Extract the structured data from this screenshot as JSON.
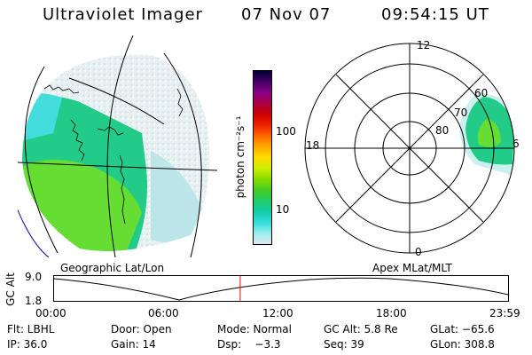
{
  "header": {
    "instrument": "Ultraviolet Imager",
    "date": "07 Nov 07",
    "time": "09:54:15 UT"
  },
  "colorbar": {
    "label": "photon cm⁻²s⁻¹",
    "ticks": [
      "100",
      "10"
    ],
    "colors": [
      "#000033",
      "#440066",
      "#880088",
      "#aa0044",
      "#cc0000",
      "#ee2200",
      "#ff6600",
      "#ffaa00",
      "#ffdd00",
      "#ccee00",
      "#88dd00",
      "#44cc22",
      "#22cc66",
      "#11ccaa",
      "#33dddd",
      "#99eeee",
      "#dde8ee"
    ]
  },
  "left_panel": {
    "caption": "Geographic Lat/Lon"
  },
  "right_panel": {
    "caption": "Apex MLat/MLT",
    "mlt_labels": {
      "top": "12",
      "left": "18",
      "right": "6",
      "bottom": "0"
    },
    "lat_labels": [
      "80",
      "70",
      "60"
    ]
  },
  "timeline": {
    "ylabel": "GC Alt",
    "yticks": [
      "9.0",
      "1.8"
    ],
    "xticks": [
      "00:00",
      "06:00",
      "12:00",
      "18:00",
      "23:59"
    ],
    "current_time_fraction": 0.41
  },
  "info": {
    "row1": [
      "Flt: LBHL",
      "Door: Open",
      "Mode: Normal",
      "GC Alt: 5.8 Re",
      "GLat: −65.6"
    ],
    "row2": [
      "IP: 36.0",
      "Gain: 14",
      "Dsp:    −3.3",
      "Seq: 39",
      "GLon: 308.8"
    ]
  }
}
